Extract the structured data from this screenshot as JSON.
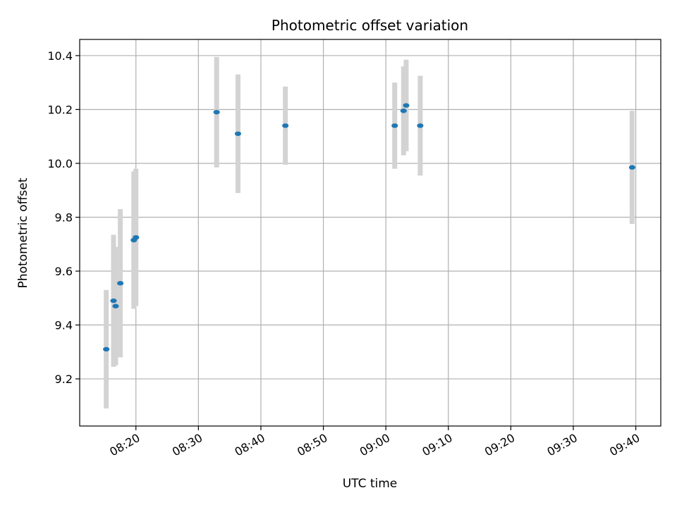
{
  "chart_data": {
    "type": "scatter",
    "title": "Photometric offset variation",
    "xlabel": "UTC time",
    "ylabel": "Photometric offset",
    "x_axis_type": "time",
    "xlim": [
      "08:11",
      "09:44"
    ],
    "ylim": [
      9.025,
      10.46
    ],
    "x_ticks": [
      "08:20",
      "08:30",
      "08:40",
      "08:50",
      "09:00",
      "09:10",
      "09:20",
      "09:30",
      "09:40"
    ],
    "y_ticks": [
      9.2,
      9.4,
      9.6,
      9.8,
      10.0,
      10.2,
      10.4
    ],
    "grid": true,
    "marker_color": "#1f77b4",
    "errorbar_color": "#d3d3d3",
    "points": [
      {
        "x": "08:15:15",
        "y": 9.31,
        "err": 0.22
      },
      {
        "x": "08:16:25",
        "y": 9.49,
        "err": 0.245
      },
      {
        "x": "08:16:45",
        "y": 9.47,
        "err": 0.22
      },
      {
        "x": "08:17:30",
        "y": 9.555,
        "err": 0.275
      },
      {
        "x": "08:19:40",
        "y": 9.715,
        "err": 0.255
      },
      {
        "x": "08:20:00",
        "y": 9.725,
        "err": 0.255
      },
      {
        "x": "08:32:55",
        "y": 10.19,
        "err": 0.205
      },
      {
        "x": "08:36:20",
        "y": 10.11,
        "err": 0.22
      },
      {
        "x": "08:43:55",
        "y": 10.14,
        "err": 0.145
      },
      {
        "x": "09:01:25",
        "y": 10.14,
        "err": 0.16
      },
      {
        "x": "09:02:50",
        "y": 10.195,
        "err": 0.165
      },
      {
        "x": "09:03:15",
        "y": 10.215,
        "err": 0.17
      },
      {
        "x": "09:05:30",
        "y": 10.14,
        "err": 0.185
      },
      {
        "x": "09:39:25",
        "y": 9.985,
        "err": 0.21
      }
    ]
  }
}
